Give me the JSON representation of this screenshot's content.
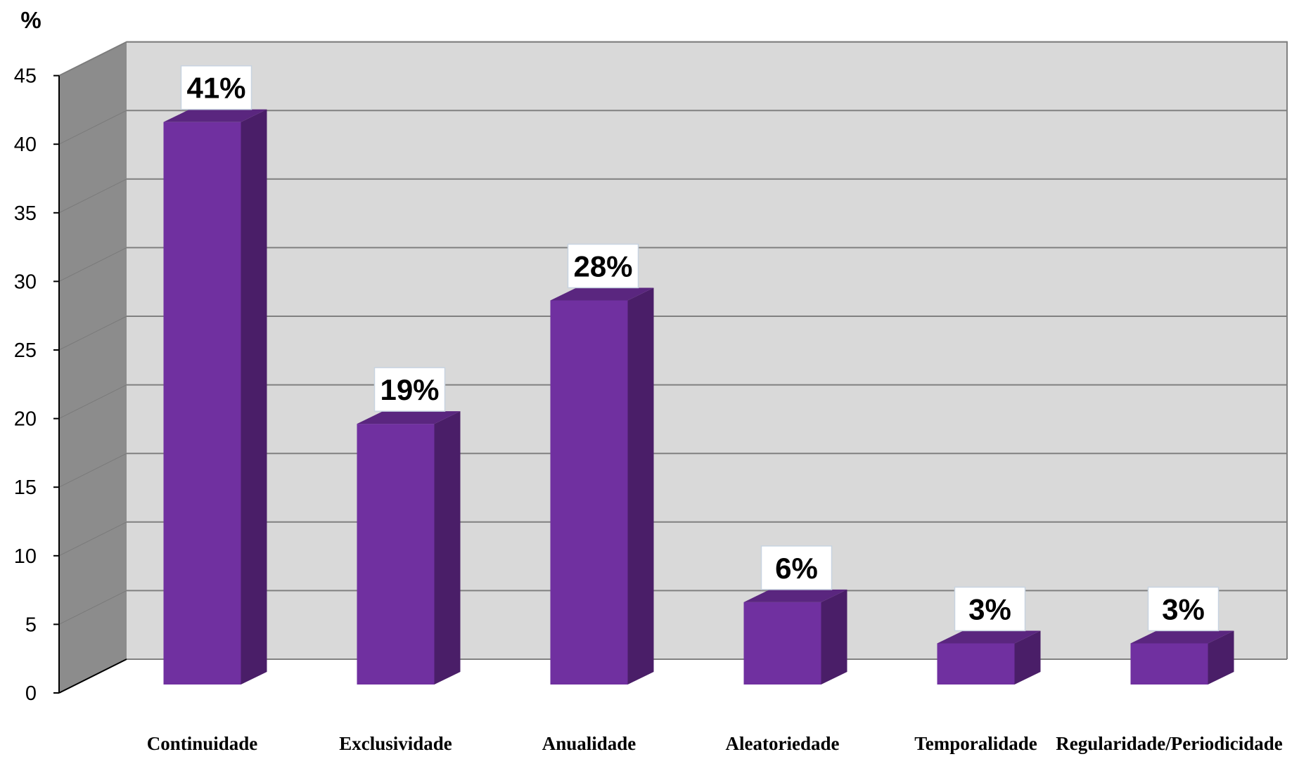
{
  "chart_data": {
    "type": "bar",
    "style": "3d-column",
    "title": "",
    "xlabel": "",
    "ylabel": "%",
    "ylim": [
      0,
      45
    ],
    "y_ticks": [
      0,
      5,
      10,
      15,
      20,
      25,
      30,
      35,
      40,
      45
    ],
    "y_tick_labels": [
      "0",
      "5",
      "10",
      "15",
      "20",
      "25",
      "30",
      "35",
      "40",
      "45"
    ],
    "grid": true,
    "legend": "none",
    "categories": [
      "Continuidade",
      "Exclusividade",
      "Anualidade",
      "Aleatoriedade",
      "Temporalidade",
      "Regularidade/Periodicidade"
    ],
    "values": [
      41,
      19,
      28,
      6,
      3,
      3
    ],
    "data_labels": [
      "41%",
      "19%",
      "28%",
      "6%",
      "3%",
      "3%"
    ]
  },
  "colors": {
    "bar_front": "#7030A0",
    "bar_side": "#4A1E68",
    "bar_top": "#5A267F",
    "back_wall": "#D9D9D9",
    "side_wall": "#8C8C8C",
    "gridline": "#808080",
    "axis": "#000000"
  }
}
